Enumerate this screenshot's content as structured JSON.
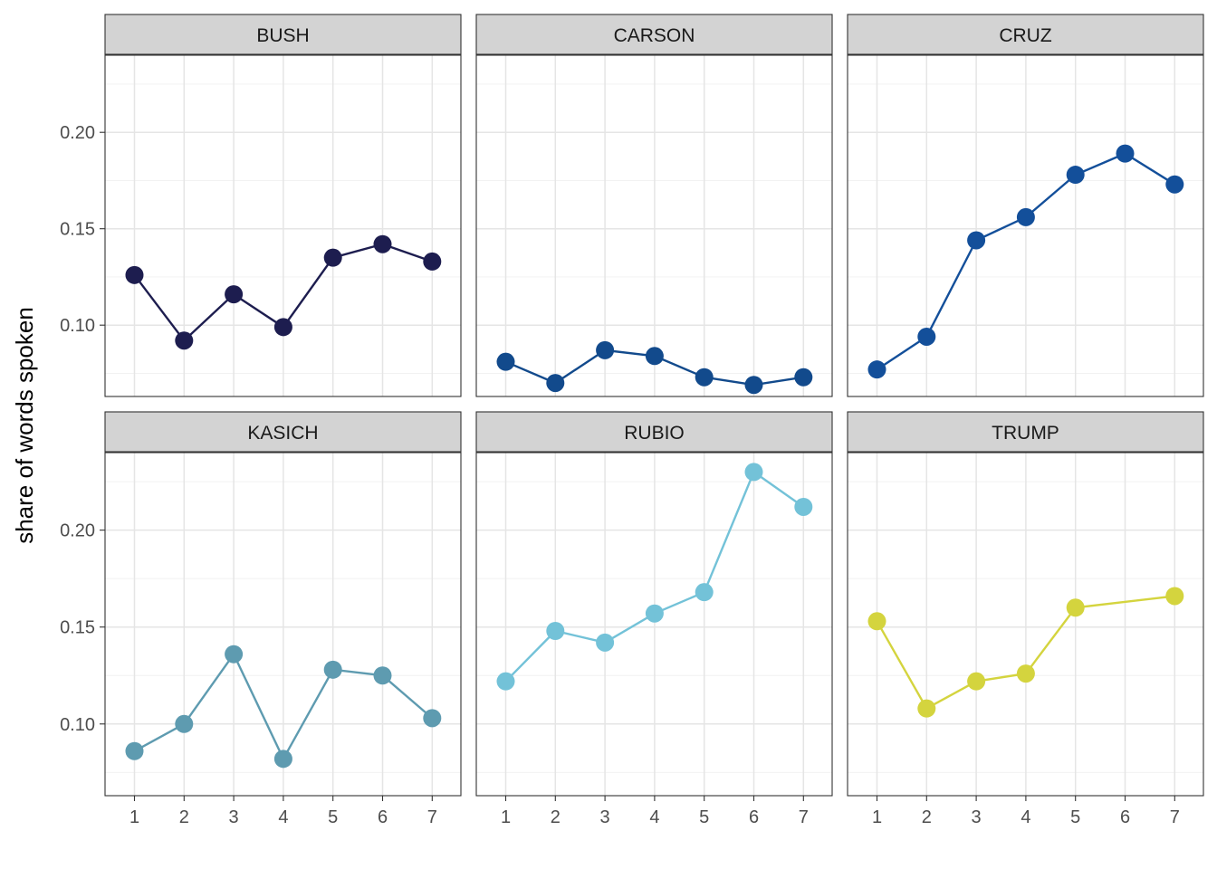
{
  "chart_data": {
    "type": "line",
    "ylabel": "share of words spoken",
    "xlabel": "",
    "x": [
      1,
      2,
      3,
      4,
      5,
      6,
      7
    ],
    "ylim": [
      0.063,
      0.24
    ],
    "y_ticks": [
      0.1,
      0.15,
      0.2
    ],
    "y_tick_labels": [
      "0.10",
      "0.15",
      "0.20"
    ],
    "grid": true,
    "layout": "facet 2 rows x 3 cols, shared axes",
    "panels": [
      {
        "name": "BUSH",
        "color": "#1d1d4f",
        "values": [
          0.126,
          0.092,
          0.116,
          0.099,
          0.135,
          0.142,
          0.133
        ]
      },
      {
        "name": "CARSON",
        "color": "#124a8c",
        "values": [
          0.081,
          0.07,
          0.087,
          0.084,
          0.073,
          0.069,
          0.073
        ]
      },
      {
        "name": "CRUZ",
        "color": "#134f9a",
        "values": [
          0.077,
          0.094,
          0.144,
          0.156,
          0.178,
          0.189,
          0.173
        ]
      },
      {
        "name": "KASICH",
        "color": "#5e9bb0",
        "values": [
          0.086,
          0.1,
          0.136,
          0.082,
          0.128,
          0.125,
          0.103
        ]
      },
      {
        "name": "RUBIO",
        "color": "#73c2d8",
        "values": [
          0.122,
          0.148,
          0.142,
          0.157,
          0.168,
          0.23,
          0.212
        ]
      },
      {
        "name": "TRUMP",
        "color": "#d4d43e",
        "values": [
          0.153,
          0.108,
          0.122,
          0.126,
          0.16,
          null,
          0.166
        ]
      }
    ]
  }
}
